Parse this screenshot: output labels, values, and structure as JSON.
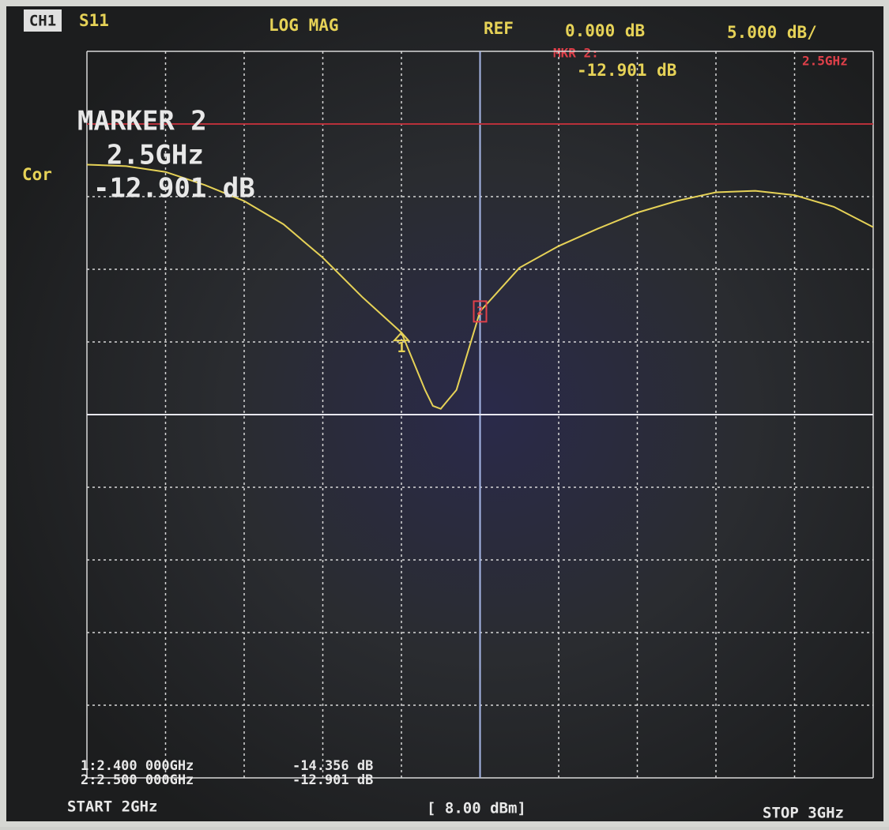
{
  "screen": {
    "channel": "CH1",
    "parameter": "S11",
    "format": "LOG MAG",
    "ref_label": "REF",
    "ref_value": "0.000 dB",
    "scale": "5.000 dB/",
    "active_marker_label": "MKR 2:",
    "active_marker_freq": "2.5GHz",
    "active_marker_value": "-12.901 dB",
    "correction": "Cor",
    "marker_box": {
      "title": "MARKER 2",
      "freq": "2.5GHz",
      "value": "-12.901 dB"
    },
    "marker_list": [
      {
        "freq": "1:2.400 000GHz",
        "value": "-14.356 dB"
      },
      {
        "freq": "2:2.500 000GHz",
        "value": "-12.901 dB"
      }
    ],
    "start": "START 2GHz",
    "power": "[ 8.00 dBm]",
    "stop": "STOP 3GHz"
  },
  "chart_data": {
    "type": "line",
    "x": [
      2.0,
      2.05,
      2.1,
      2.15,
      2.2,
      2.25,
      2.3,
      2.35,
      2.4,
      2.43,
      2.44,
      2.45,
      2.47,
      2.5,
      2.55,
      2.6,
      2.65,
      2.7,
      2.75,
      2.8,
      2.85,
      2.9,
      2.95,
      3.0
    ],
    "values": [
      -2.8,
      -2.9,
      -3.3,
      -4.2,
      -5.3,
      -6.9,
      -9.2,
      -11.9,
      -14.356,
      -18.3,
      -19.4,
      -19.6,
      -18.3,
      -12.901,
      -9.9,
      -8.4,
      -7.2,
      -6.1,
      -5.3,
      -4.7,
      -4.6,
      -4.9,
      -5.7,
      -7.1
    ],
    "color": "#e6d257",
    "xlim": [
      2,
      3
    ],
    "ylim": [
      -45,
      5
    ],
    "ref_level": 0,
    "ref_color": "#b8303a",
    "limit_line": -20,
    "markers": [
      {
        "label": "1",
        "x": 2.4,
        "value": -14.356,
        "color": "#e6d257"
      },
      {
        "label": "2",
        "x": 2.5,
        "value": -12.901,
        "color": "#e0404a"
      }
    ]
  }
}
